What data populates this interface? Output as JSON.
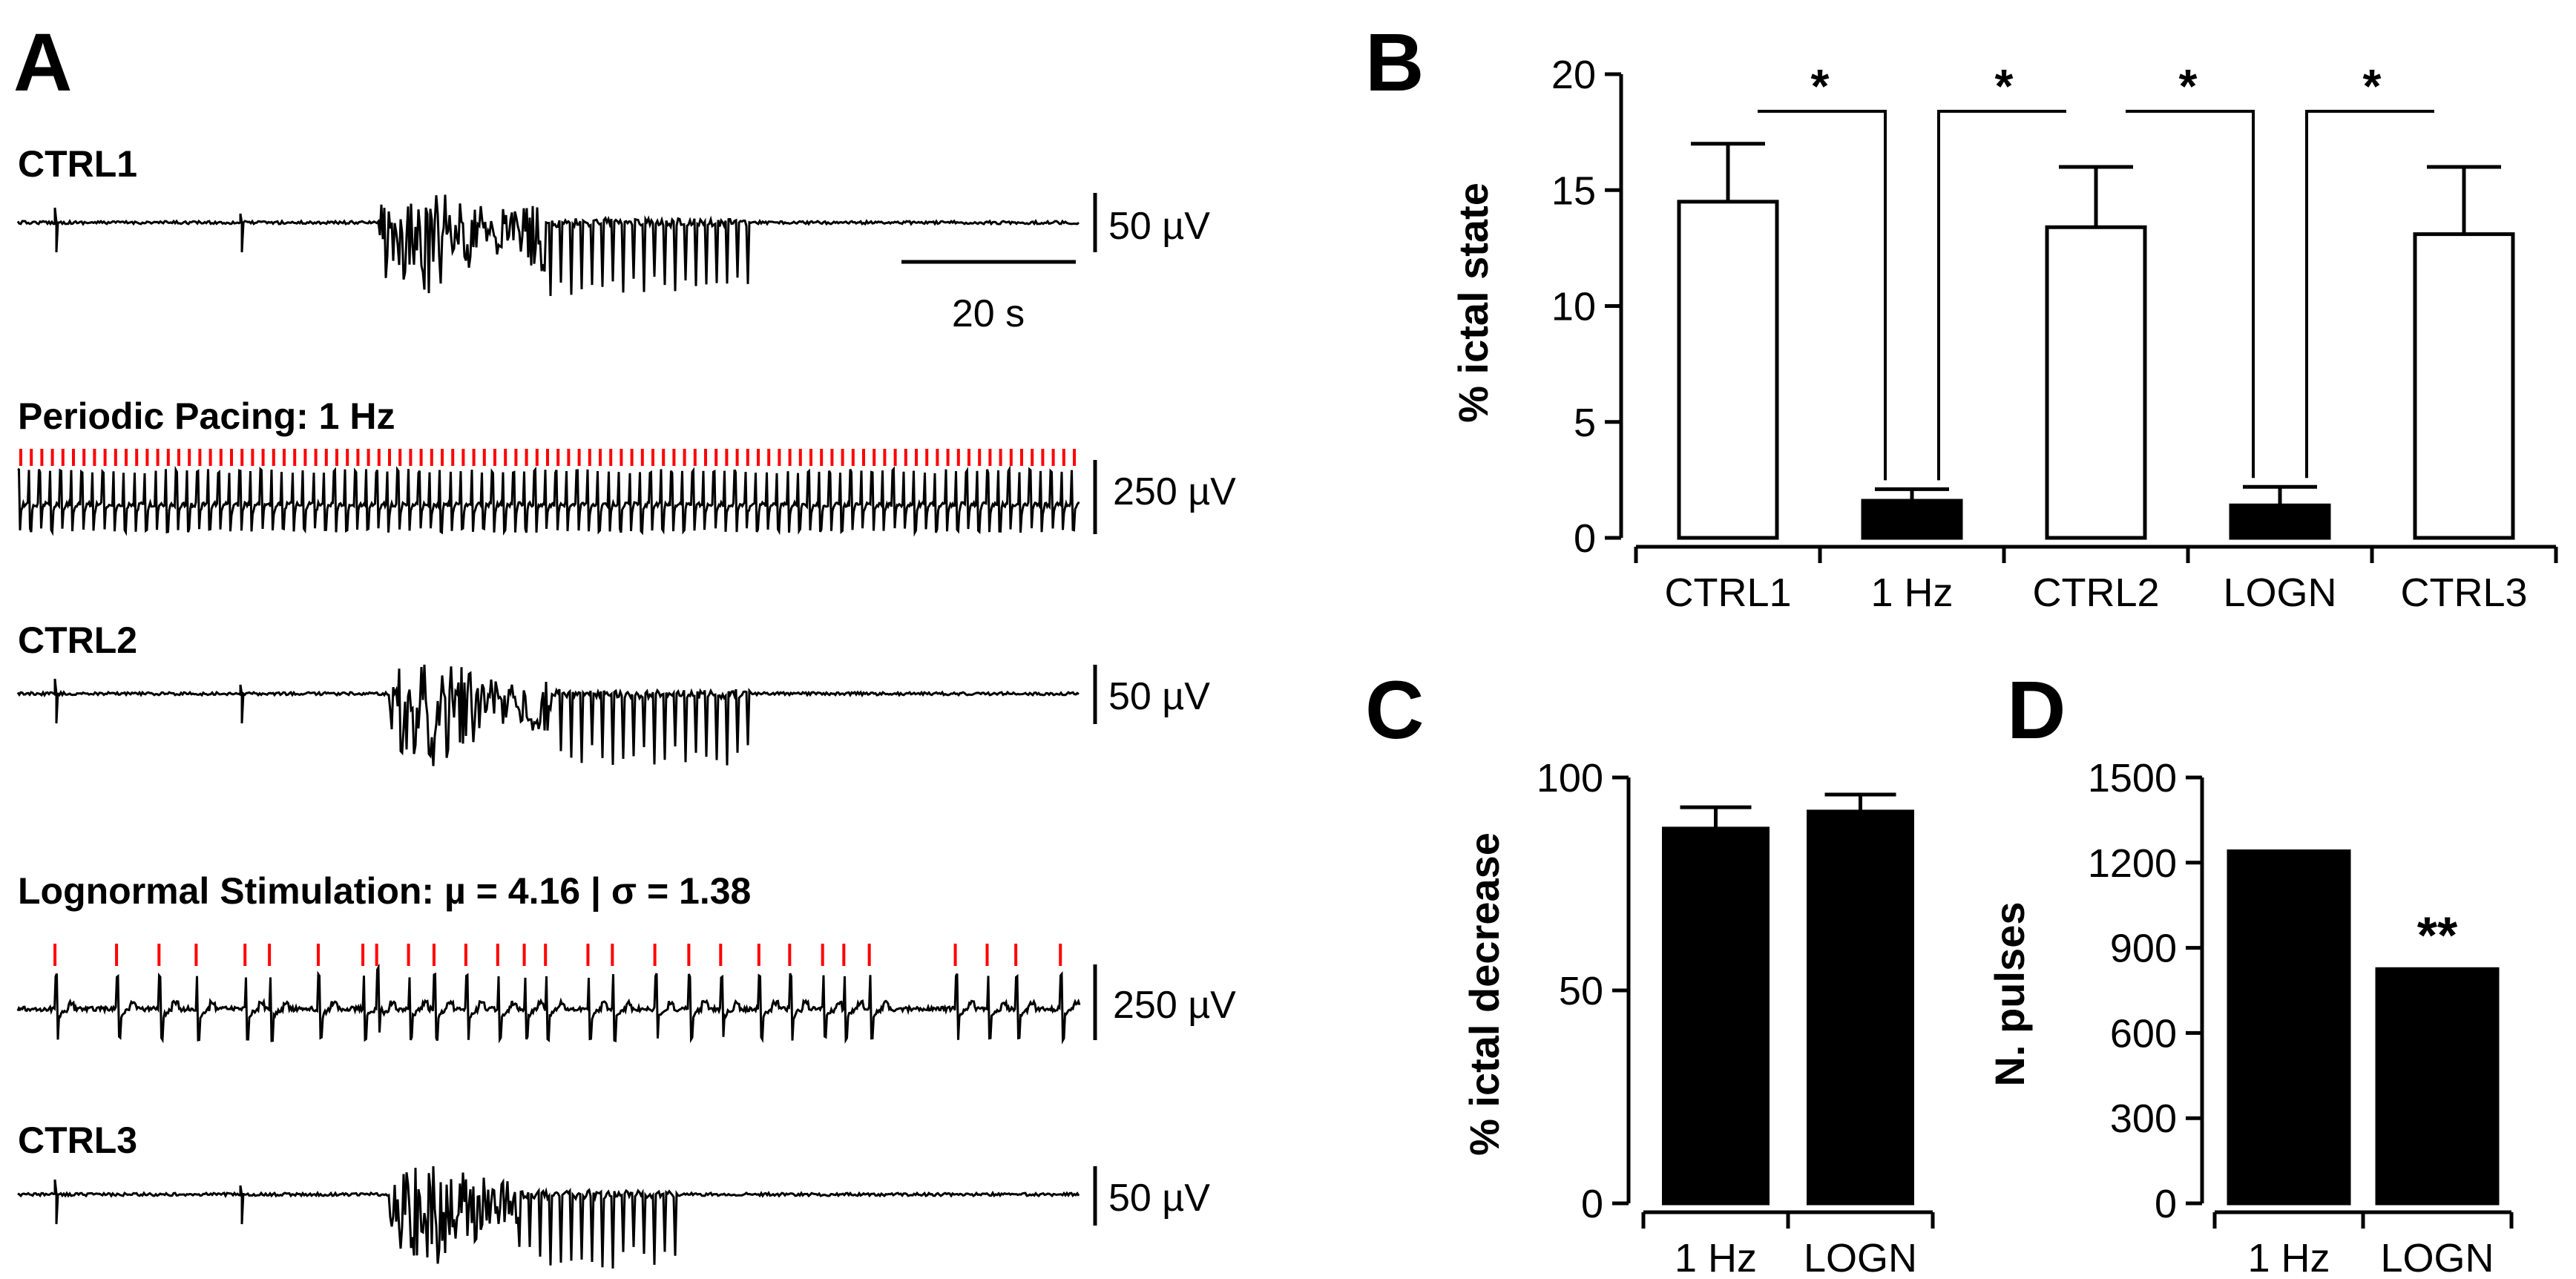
{
  "panel_a": {
    "letter": "A",
    "traces": [
      {
        "label": "CTRL1",
        "scale": "50 µV",
        "kind": "seizure",
        "burst": [
          0.34,
          0.69
        ]
      },
      {
        "label": "Periodic Pacing: 1 Hz",
        "scale": "250 µV",
        "kind": "periodic"
      },
      {
        "label": "CTRL2",
        "scale": "50 µV",
        "kind": "seizure",
        "burst": [
          0.35,
          0.69
        ]
      },
      {
        "label": "Lognormal Stimulation: µ = 4.16 | σ = 1.38",
        "scale": "250 µV",
        "kind": "lognormal"
      },
      {
        "label": "CTRL3",
        "scale": "50 µV",
        "kind": "seizure",
        "burst": [
          0.35,
          0.62
        ]
      }
    ],
    "time_scale_label": "20 s",
    "lognormal_stim_times": [
      0.035,
      0.093,
      0.133,
      0.168,
      0.214,
      0.237,
      0.283,
      0.325,
      0.338,
      0.368,
      0.392,
      0.422,
      0.452,
      0.477,
      0.497,
      0.537,
      0.56,
      0.6,
      0.632,
      0.662,
      0.698,
      0.727,
      0.758,
      0.778,
      0.802,
      0.883,
      0.913,
      0.94,
      0.982
    ],
    "colors": {
      "trace": "#000000",
      "stim": "#ff0000"
    }
  },
  "chart_data": [
    {
      "panel": "B",
      "type": "bar",
      "categories": [
        "CTRL1",
        "1 Hz",
        "CTRL2",
        "LOGN",
        "CTRL3"
      ],
      "values": [
        14.5,
        1.6,
        13.4,
        1.4,
        13.1
      ],
      "errors": [
        2.5,
        0.5,
        2.6,
        0.8,
        2.9
      ],
      "fills": [
        "#ffffff",
        "#000000",
        "#ffffff",
        "#000000",
        "#ffffff"
      ],
      "ylabel": "% ictal state",
      "ylim": [
        0,
        20
      ],
      "yticks": [
        0,
        5,
        10,
        15,
        20
      ],
      "significance": [
        {
          "from": 0,
          "to": 1,
          "label": "*"
        },
        {
          "from": 1,
          "to": 2,
          "label": "*"
        },
        {
          "from": 2,
          "to": 3,
          "label": "*"
        },
        {
          "from": 3,
          "to": 4,
          "label": "*"
        }
      ]
    },
    {
      "panel": "C",
      "type": "bar",
      "categories": [
        "1 Hz",
        "LOGN"
      ],
      "values": [
        88,
        92
      ],
      "errors": [
        5,
        4
      ],
      "ylabel": "% ictal decrease",
      "ylim": [
        0,
        100
      ],
      "yticks": [
        0,
        50,
        100
      ]
    },
    {
      "panel": "D",
      "type": "bar",
      "categories": [
        "1 Hz",
        "LOGN"
      ],
      "values": [
        1240,
        825
      ],
      "annotations": [
        "",
        "**"
      ],
      "ylabel": "N. pulses",
      "ylim": [
        0,
        1500
      ],
      "yticks": [
        0,
        300,
        600,
        900,
        1200,
        1500
      ]
    }
  ]
}
